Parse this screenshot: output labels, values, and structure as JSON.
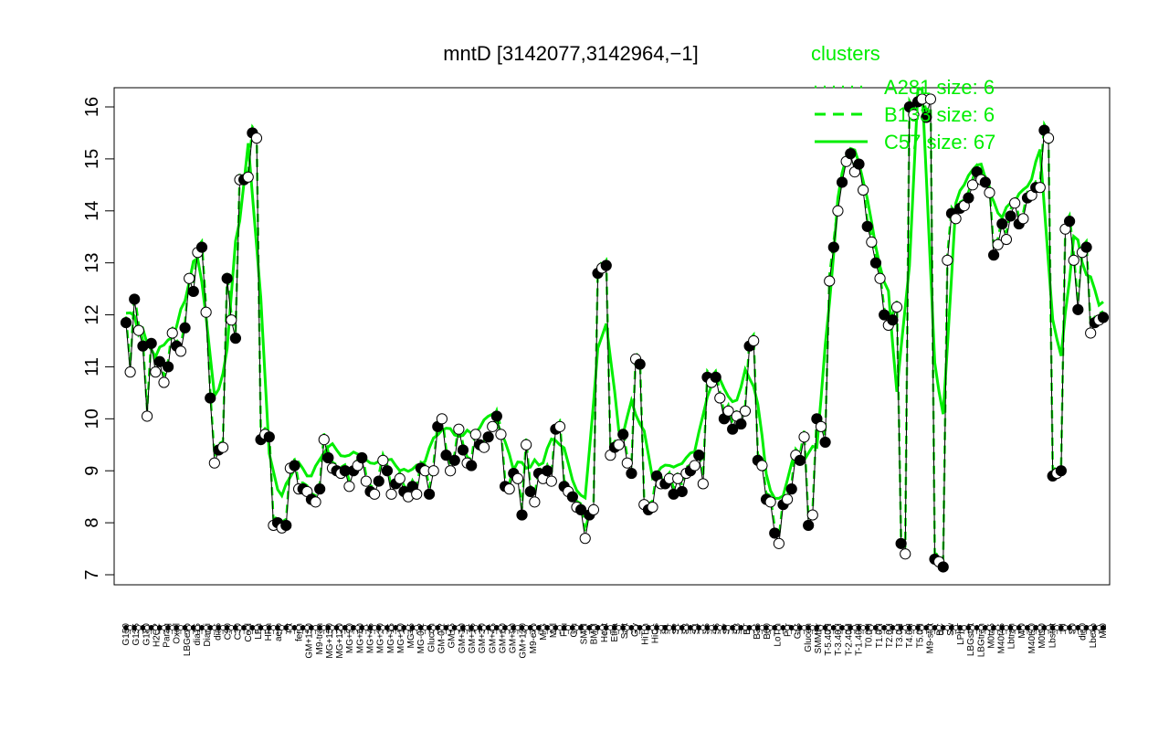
{
  "chart_data": {
    "type": "line",
    "title": "mntD [3142077,3142964,−1]",
    "xlabel": "",
    "ylabel": "",
    "ylim": [
      7,
      16
    ],
    "yticks": [
      7,
      8,
      9,
      10,
      11,
      12,
      13,
      14,
      15,
      16
    ],
    "grid": false,
    "legend": {
      "title": "clusters",
      "placement": "top-right",
      "entries": [
        "A281 size: 6",
        "B133 size: 6",
        "C57 size: 67"
      ]
    },
    "colors": {
      "series": "#00ee00",
      "points": "#000000",
      "text": "#000000"
    },
    "x_tick_labels": [
      "G150",
      "G135",
      "G180",
      "H2O2",
      "Paraq",
      "Oxctl",
      "LBGexp",
      "dia15",
      "Diami",
      "dia5",
      "C90",
      "C30",
      "Cold",
      "LPh",
      "HPh",
      "aero",
      "nit",
      "ferm",
      "GM+150",
      "M9-tran",
      "MG+150",
      "MG+120",
      "MG+90",
      "MG+60",
      "MG+45",
      "MG+30",
      "MG+15",
      "MG+10",
      "MG+5",
      "MG-0.2",
      "Glucon",
      "GM-0.2",
      "GM+5",
      "GM+10",
      "GM+15",
      "GM+30",
      "GM+45",
      "GM+60",
      "GM+90",
      "GM+120",
      "M9-exp",
      "M/G",
      "Mal",
      "Fru",
      "Glu",
      "SMM",
      "BMM",
      "Heat",
      "Etha",
      "Salt",
      "Gly",
      "HiTm",
      "HiOs",
      "S1",
      "S2",
      "S3",
      "S4",
      "S5",
      "S6",
      "S7",
      "S8",
      "BT",
      "B36",
      "B60",
      "LoTm",
      "Pyr",
      "G/S",
      "Glucon",
      "SMMPr",
      "T-5.40H",
      "T-3.40H",
      "T-2.40H",
      "T-1.40H",
      "T0.0H",
      "T1.0H",
      "T2.0H",
      "T3.0H",
      "T4.0H",
      "T5.0H",
      "M9-stat",
      "BC",
      "Sw",
      "LPhT",
      "LBGstat",
      "LBGtran",
      "M0t45",
      "M40t45",
      "Lbtran",
      "Mt0",
      "M40t90",
      "M0t90",
      "Lbstat",
      "BI",
      "S0",
      "dia0",
      "Lbexp",
      "Mt0"
    ],
    "series": [
      {
        "values": [
          11.85,
          10.9,
          12.3,
          11.7,
          11.4,
          10.05,
          11.45,
          10.9,
          11.1,
          10.7,
          11.0,
          11.65,
          11.4,
          11.3,
          11.75,
          12.7,
          12.45,
          13.2,
          13.3,
          12.05,
          10.4,
          9.15,
          9.4,
          9.45,
          12.7,
          11.9,
          11.55,
          14.6,
          14.6,
          14.65,
          15.5,
          15.4,
          9.6,
          9.7,
          9.65,
          7.95,
          8.0,
          7.9,
          7.95,
          9.05,
          9.1,
          8.65,
          8.65,
          8.6,
          8.45,
          8.4,
          8.65,
          9.6,
          9.25,
          9.05,
          9.0,
          8.95,
          9.0,
          8.7,
          9.0,
          9.1,
          9.25,
          8.8,
          8.6,
          8.55,
          8.8,
          9.2,
          9.0,
          8.55,
          8.75,
          8.85,
          8.6,
          8.5,
          8.7,
          8.55,
          9.05,
          9.0,
          8.55,
          9.0,
          9.85,
          10.0,
          9.3,
          9.0,
          9.2,
          9.8,
          9.4,
          9.15,
          9.1,
          9.7,
          9.5,
          9.45,
          9.65,
          9.85,
          10.05,
          9.7,
          8.7,
          8.65,
          8.95,
          8.85,
          8.15,
          9.5,
          8.6,
          8.4,
          8.95,
          8.85,
          9.0,
          8.8,
          9.8,
          9.85,
          8.7,
          8.6,
          8.5,
          8.3,
          8.25,
          7.7,
          8.15,
          8.25,
          12.8,
          12.9,
          12.95,
          9.3,
          9.45,
          9.5,
          9.7,
          9.15,
          8.95,
          11.15,
          11.05,
          8.35,
          8.25,
          8.3,
          8.9,
          8.75,
          8.75,
          8.85,
          8.55,
          8.85,
          8.6,
          8.95,
          9.0,
          9.1,
          9.3,
          8.75,
          10.8,
          10.7,
          10.8,
          10.4,
          10.0,
          10.15,
          9.8,
          10.05,
          9.9,
          10.15,
          11.4,
          11.5,
          9.2,
          9.1,
          8.45,
          8.4,
          7.8,
          7.6,
          8.35,
          8.45,
          8.65,
          9.3,
          9.2,
          9.65,
          7.95,
          8.15,
          10.0,
          9.85,
          9.55,
          12.65,
          13.3,
          14.0,
          14.55,
          14.95,
          15.1,
          14.75,
          14.9,
          14.4,
          13.7,
          13.4,
          13.0,
          12.7,
          12.0,
          11.8,
          11.9,
          12.15,
          7.6,
          7.4,
          16.0,
          15.85,
          16.1,
          16.15,
          15.8,
          16.15,
          7.3,
          7.25,
          7.15,
          13.05,
          13.95,
          13.85,
          14.05,
          14.1,
          14.25,
          14.5,
          14.75,
          14.6,
          14.55,
          14.35,
          13.15,
          13.35,
          13.75,
          13.45,
          13.9,
          14.15,
          13.75,
          13.85,
          14.25,
          14.3,
          14.45,
          14.45,
          15.55,
          15.4,
          8.9,
          8.95,
          9.0,
          13.65,
          13.8,
          13.05,
          12.1,
          13.2,
          13.3,
          11.65,
          11.85,
          11.9,
          11.95
        ]
      }
    ]
  }
}
